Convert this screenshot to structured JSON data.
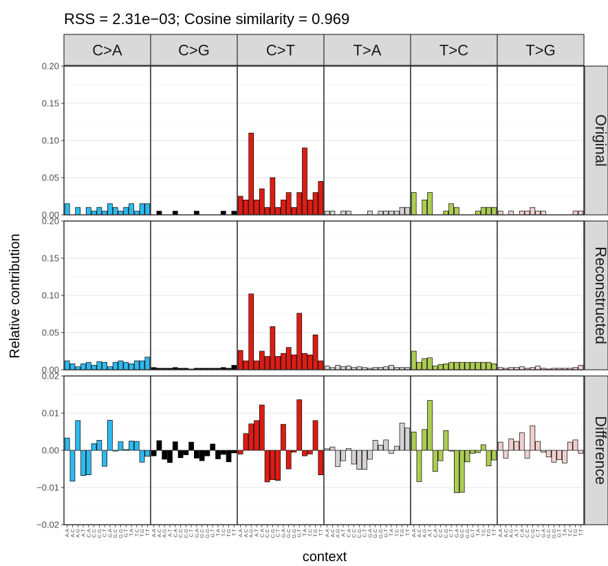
{
  "chart_data": {
    "type": "bar",
    "title": "RSS = 2.31e−03; Cosine similarity = 0.969",
    "xlabel": "context",
    "ylabel": "Relative contribution",
    "facet_columns": [
      "C>A",
      "C>G",
      "C>T",
      "T>A",
      "T>C",
      "T>G"
    ],
    "facet_rows": [
      "Original",
      "Reconstructed",
      "Difference"
    ],
    "colors": {
      "C>A": "#2EBAED",
      "C>G": "#000000",
      "C>T": "#DE1C14",
      "T>A": "#D4D2D2",
      "T>C": "#ADCC54",
      "T>G": "#F0D0CE"
    },
    "contexts": [
      "A.A",
      "A.C",
      "A.G",
      "A.T",
      "C.A",
      "C.C",
      "C.G",
      "C.T",
      "G.A",
      "G.C",
      "G.G",
      "G.T",
      "T.A",
      "T.C",
      "T.G",
      "T.T"
    ],
    "ylim": {
      "Original": [
        0,
        0.2
      ],
      "Reconstructed": [
        0,
        0.2
      ],
      "Difference": [
        -0.02,
        0.02
      ]
    },
    "yticks": {
      "Original": [
        "0.00",
        "0.05",
        "0.10",
        "0.15",
        "0.20"
      ],
      "Reconstructed": [
        "0.00",
        "0.05",
        "0.10",
        "0.15",
        "0.20"
      ],
      "Difference": [
        "−0.02",
        "−0.01",
        "0.00",
        "0.01",
        "0.02"
      ]
    },
    "grid": true,
    "values": {
      "Original": {
        "C>A": [
          0.015,
          0.0,
          0.01,
          0.0,
          0.01,
          0.005,
          0.01,
          0.005,
          0.015,
          0.01,
          0.005,
          0.01,
          0.015,
          0.005,
          0.015,
          0.015
        ],
        "C>G": [
          0.0,
          0.005,
          0.0,
          0.0,
          0.005,
          0.0,
          0.0,
          0.0,
          0.005,
          0.0,
          0.0,
          0.0,
          0.0,
          0.005,
          0.0,
          0.005
        ],
        "C>T": [
          0.025,
          0.02,
          0.11,
          0.02,
          0.035,
          0.01,
          0.05,
          0.01,
          0.02,
          0.03,
          0.01,
          0.03,
          0.09,
          0.02,
          0.03,
          0.045
        ],
        "T>A": [
          0.005,
          0.005,
          0.0,
          0.005,
          0.005,
          0.0,
          0.0,
          0.0,
          0.005,
          0.0,
          0.005,
          0.005,
          0.005,
          0.005,
          0.01,
          0.01
        ],
        "T>C": [
          0.03,
          0.0,
          0.02,
          0.03,
          0.0,
          0.0,
          0.005,
          0.015,
          0.01,
          0.0,
          0.0,
          0.0,
          0.005,
          0.01,
          0.01,
          0.01
        ],
        "T>G": [
          0.005,
          0.0,
          0.005,
          0.0,
          0.005,
          0.005,
          0.01,
          0.005,
          0.005,
          0.0,
          0.0,
          0.0,
          0.0,
          0.0,
          0.005,
          0.005
        ]
      },
      "Reconstructed": {
        "C>A": [
          0.012,
          0.008,
          0.004,
          0.008,
          0.01,
          0.006,
          0.011,
          0.01,
          0.004,
          0.01,
          0.012,
          0.01,
          0.008,
          0.012,
          0.012,
          0.017
        ],
        "C>G": [
          0.003,
          0.002,
          0.002,
          0.002,
          0.003,
          0.002,
          0.002,
          0.001,
          0.002,
          0.002,
          0.002,
          0.002,
          0.002,
          0.003,
          0.002,
          0.006
        ],
        "C>T": [
          0.026,
          0.012,
          0.102,
          0.012,
          0.025,
          0.018,
          0.058,
          0.018,
          0.022,
          0.03,
          0.02,
          0.076,
          0.022,
          0.02,
          0.047,
          0.012
        ],
        "T>A": [
          0.005,
          0.003,
          0.006,
          0.004,
          0.005,
          0.003,
          0.004,
          0.003,
          0.002,
          0.003,
          0.003,
          0.004,
          0.006,
          0.003,
          0.003,
          0.003
        ],
        "T>C": [
          0.025,
          0.01,
          0.015,
          0.016,
          0.005,
          0.007,
          0.008,
          0.01,
          0.01,
          0.01,
          0.01,
          0.01,
          0.01,
          0.01,
          0.01,
          0.008
        ],
        "T>G": [
          0.003,
          0.002,
          0.003,
          0.003,
          0.004,
          0.002,
          0.003,
          0.005,
          0.002,
          0.001,
          0.002,
          0.002,
          0.002,
          0.002,
          0.003,
          0.006
        ]
      },
      "Difference": {
        "C>A": [
          0.0033,
          -0.0083,
          0.008,
          -0.0068,
          -0.0066,
          0.0018,
          0.0027,
          -0.0043,
          0.0081,
          -0.0002,
          0.0023,
          0.0002,
          0.0025,
          0.0024,
          -0.0032,
          -0.0016
        ],
        "C>G": [
          -0.0015,
          0.0026,
          -0.0024,
          -0.0033,
          0.0023,
          -0.002,
          -0.0012,
          0.0022,
          -0.0021,
          -0.0028,
          -0.0015,
          0.0017,
          -0.0023,
          -0.0011,
          -0.0031,
          -0.0007
        ],
        "C>T": [
          -0.001,
          0.0045,
          0.0071,
          0.008,
          0.0122,
          -0.0085,
          -0.0079,
          -0.0081,
          0.007,
          -0.005,
          -0.0005,
          0.0136,
          -0.0015,
          -0.001,
          0.008,
          -0.0066
        ],
        "T>A": [
          0.0004,
          0.0009,
          -0.0044,
          -0.0028,
          0.0005,
          -0.0037,
          -0.0051,
          -0.0051,
          -0.0024,
          0.0027,
          0.0014,
          0.0028,
          -0.0008,
          0.0011,
          0.0073,
          0.006
        ],
        "T>C": [
          0.0049,
          -0.0084,
          0.0056,
          0.0134,
          -0.0057,
          -0.0028,
          0.0053,
          -0.0002,
          -0.0114,
          -0.0113,
          -0.0031,
          -0.0008,
          -0.0006,
          0.0015,
          -0.0042,
          -0.0026
        ],
        "T>G": [
          0.0022,
          -0.0021,
          0.0031,
          0.0024,
          0.0047,
          -0.0021,
          0.0066,
          0.0024,
          -0.0005,
          -0.0018,
          -0.0032,
          -0.0025,
          -0.0034,
          0.0022,
          0.0028,
          -0.0008
        ]
      }
    }
  }
}
